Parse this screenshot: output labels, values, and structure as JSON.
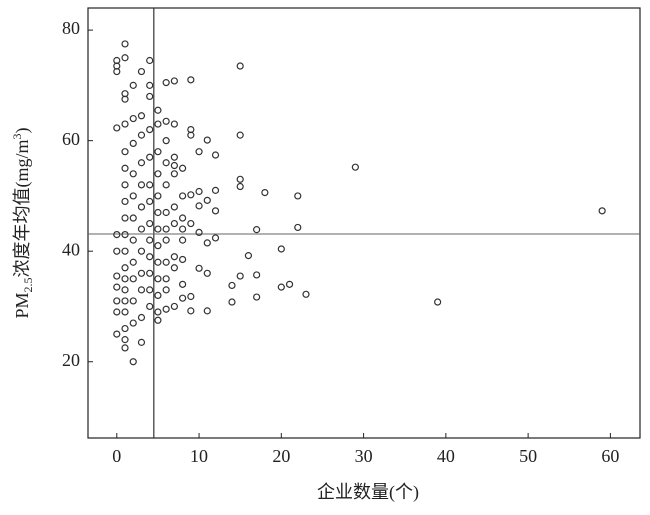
{
  "chart_data": {
    "type": "scatter",
    "x_label": "企业数量(个)",
    "y_label": [
      "PM",
      "2.5",
      "浓度年均值(mg/m",
      "3",
      ")"
    ],
    "xlim": [
      -3.5,
      63.6
    ],
    "ylim": [
      6.2,
      84
    ],
    "xticks": [
      0,
      10,
      20,
      30,
      40,
      50,
      60
    ],
    "yticks": [
      20,
      40,
      60,
      80
    ],
    "vline": 4.5,
    "hline": 43.1,
    "color": "#333333",
    "x": [
      59,
      39,
      29,
      23,
      22,
      22,
      21,
      20,
      20,
      18,
      17,
      17,
      17,
      16,
      15,
      15,
      15,
      15,
      15,
      14,
      14,
      12,
      12,
      12,
      12,
      11,
      11,
      11,
      11,
      11,
      10,
      10,
      10,
      10,
      10,
      9,
      9,
      9,
      9,
      9,
      9,
      9,
      8,
      8,
      8,
      8,
      8,
      8,
      8,
      8,
      7,
      7,
      7,
      7,
      7,
      7,
      7,
      7,
      7,
      7,
      6,
      6,
      6,
      6,
      6,
      6,
      6,
      6,
      6,
      6,
      6,
      6,
      5,
      5,
      5,
      5,
      5,
      5,
      5,
      5,
      5,
      5,
      5,
      5,
      5,
      4,
      4,
      4,
      4,
      4,
      4,
      4,
      4,
      4,
      4,
      4,
      4,
      4,
      3,
      3,
      3,
      3,
      3,
      3,
      3,
      3,
      3,
      3,
      3,
      3,
      2,
      2,
      2,
      2,
      2,
      2,
      2,
      2,
      2,
      2,
      2,
      2,
      1,
      1,
      1,
      1,
      1,
      1,
      1,
      1,
      1,
      1,
      1,
      1,
      1,
      1,
      1,
      1,
      1,
      1,
      1,
      1,
      0,
      0,
      0,
      0,
      0,
      0,
      0,
      0,
      0,
      0,
      0
    ],
    "y": [
      47.3,
      30.8,
      55.2,
      32.2,
      50,
      44.3,
      34,
      40.4,
      33.5,
      50.6,
      43.9,
      35.7,
      31.7,
      39.2,
      73.5,
      61,
      53,
      51.7,
      35.5,
      33.8,
      30.8,
      57.4,
      51,
      47.3,
      42.4,
      60.1,
      49.2,
      41.5,
      36,
      29.2,
      58,
      50.8,
      48.2,
      43.4,
      36.9,
      71,
      62,
      61,
      50.2,
      45,
      31.8,
      29.2,
      55,
      50,
      46,
      44,
      42,
      38.5,
      34,
      31.5,
      70.8,
      63,
      57,
      55.5,
      54,
      48,
      45,
      39,
      37,
      30,
      70.5,
      63.5,
      60,
      56,
      52,
      47,
      44,
      42,
      38,
      35,
      33,
      29.5,
      65.5,
      63,
      58,
      54,
      50,
      47,
      44,
      41,
      38,
      35,
      32,
      29,
      27.5,
      74.5,
      70,
      68,
      62,
      57,
      52,
      49,
      45,
      42,
      39,
      36,
      33,
      30,
      72.5,
      64.5,
      61,
      56,
      52,
      48,
      44,
      40,
      36,
      33,
      28,
      23.5,
      70,
      64,
      59.5,
      54,
      50,
      46,
      42,
      38,
      35,
      31,
      27,
      20,
      77.5,
      75,
      68.5,
      67.5,
      63,
      58,
      55,
      52,
      49,
      46,
      43,
      40,
      37,
      35,
      33,
      31,
      29,
      26,
      24,
      22.5,
      74.5,
      73.5,
      72.5,
      62.3,
      43,
      40,
      35.5,
      33.5,
      31,
      29,
      25
    ]
  }
}
